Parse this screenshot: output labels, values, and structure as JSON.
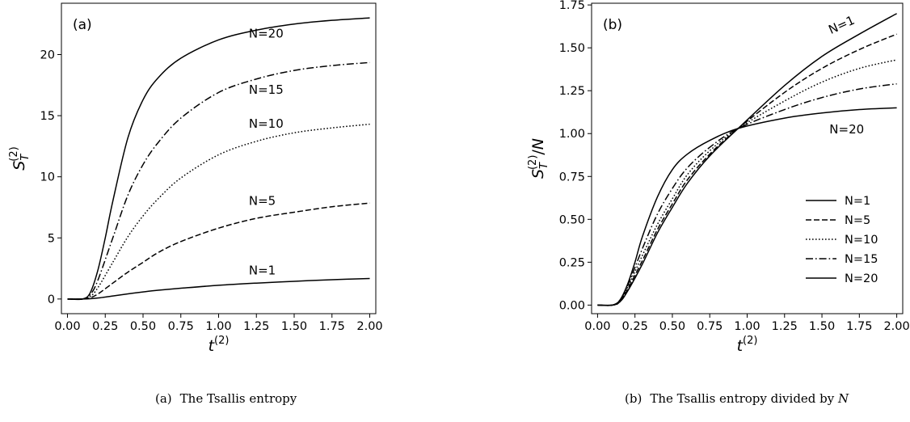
{
  "captions": {
    "a": {
      "tag": "(a)",
      "text": "The Tsallis entropy"
    },
    "b": {
      "tag": "(b)",
      "text_pre": "The Tsallis entropy divided by",
      "text_var": "N"
    }
  },
  "chart_data": [
    {
      "type": "line",
      "panel_label": "(a)",
      "xlabel": "t^(2)",
      "ylabel": "S_T^(2)",
      "xlim": [
        -0.04,
        2.04
      ],
      "ylim": [
        -1.2,
        24.2
      ],
      "xticks": [
        0.0,
        0.25,
        0.5,
        0.75,
        1.0,
        1.25,
        1.5,
        1.75,
        2.0
      ],
      "xtick_labels": [
        "0.00",
        "0.25",
        "0.50",
        "0.75",
        "1.00",
        "1.25",
        "1.50",
        "1.75",
        "2.00"
      ],
      "yticks": [
        0,
        5,
        10,
        15,
        20
      ],
      "ytick_labels": [
        "0",
        "5",
        "10",
        "15",
        "20"
      ],
      "grid": false,
      "legend": "none",
      "series": [
        {
          "name": "N=1",
          "dash": "solid",
          "x": [
            0.0,
            0.1,
            0.15,
            0.2,
            0.3,
            0.4,
            0.5,
            0.6,
            0.75,
            1.0,
            1.25,
            1.5,
            1.75,
            2.0
          ],
          "y": [
            0.0,
            0.0,
            0.02,
            0.08,
            0.25,
            0.42,
            0.58,
            0.72,
            0.88,
            1.12,
            1.3,
            1.45,
            1.58,
            1.68
          ]
        },
        {
          "name": "N=5",
          "dash": "dashed",
          "x": [
            0.0,
            0.1,
            0.15,
            0.2,
            0.3,
            0.4,
            0.5,
            0.6,
            0.75,
            1.0,
            1.25,
            1.5,
            1.75,
            2.0
          ],
          "y": [
            0.0,
            0.0,
            0.1,
            0.4,
            1.3,
            2.2,
            3.0,
            3.8,
            4.7,
            5.8,
            6.6,
            7.1,
            7.55,
            7.85
          ]
        },
        {
          "name": "N=10",
          "dash": "dotted",
          "x": [
            0.0,
            0.1,
            0.15,
            0.2,
            0.3,
            0.4,
            0.5,
            0.6,
            0.75,
            1.0,
            1.25,
            1.5,
            1.75,
            2.0
          ],
          "y": [
            0.0,
            0.0,
            0.2,
            0.9,
            3.0,
            5.1,
            6.8,
            8.2,
            9.9,
            11.8,
            12.9,
            13.6,
            14.0,
            14.3
          ]
        },
        {
          "name": "N=15",
          "dash": "dashdot",
          "x": [
            0.0,
            0.1,
            0.15,
            0.2,
            0.3,
            0.4,
            0.5,
            0.6,
            0.75,
            1.0,
            1.25,
            1.5,
            1.75,
            2.0
          ],
          "y": [
            0.0,
            0.0,
            0.35,
            1.5,
            5.0,
            8.5,
            11.0,
            12.8,
            14.8,
            16.9,
            18.0,
            18.7,
            19.1,
            19.35
          ]
        },
        {
          "name": "N=20",
          "dash": "solid",
          "x": [
            0.0,
            0.1,
            0.15,
            0.2,
            0.25,
            0.3,
            0.4,
            0.5,
            0.6,
            0.75,
            1.0,
            1.25,
            1.5,
            1.75,
            2.0
          ],
          "y": [
            0.0,
            0.0,
            0.5,
            2.3,
            5.0,
            8.0,
            13.2,
            16.3,
            18.1,
            19.7,
            21.2,
            22.0,
            22.5,
            22.8,
            23.0
          ]
        }
      ],
      "annotations": [
        {
          "text": "N=20",
          "x": 1.2,
          "y": 21.4
        },
        {
          "text": "N=15",
          "x": 1.2,
          "y": 16.8
        },
        {
          "text": "N=10",
          "x": 1.2,
          "y": 14.0
        },
        {
          "text": "N=5",
          "x": 1.2,
          "y": 7.7
        },
        {
          "text": "N=1",
          "x": 1.2,
          "y": 2.0
        }
      ]
    },
    {
      "type": "line",
      "panel_label": "(b)",
      "xlabel": "t^(2)",
      "ylabel": "S_T^(2)/N",
      "xlim": [
        -0.04,
        2.04
      ],
      "ylim": [
        -0.05,
        1.76
      ],
      "xticks": [
        0.0,
        0.25,
        0.5,
        0.75,
        1.0,
        1.25,
        1.5,
        1.75,
        2.0
      ],
      "xtick_labels": [
        "0.00",
        "0.25",
        "0.50",
        "0.75",
        "1.00",
        "1.25",
        "1.50",
        "1.75",
        "2.00"
      ],
      "yticks": [
        0.0,
        0.25,
        0.5,
        0.75,
        1.0,
        1.25,
        1.5,
        1.75
      ],
      "ytick_labels": [
        "0.00",
        "0.25",
        "0.50",
        "0.75",
        "1.00",
        "1.25",
        "1.50",
        "1.75"
      ],
      "grid": false,
      "legend": "lower-right",
      "series": [
        {
          "name": "N=1",
          "dash": "solid",
          "x": [
            0.0,
            0.1,
            0.15,
            0.2,
            0.3,
            0.4,
            0.5,
            0.6,
            0.75,
            0.94,
            1.25,
            1.5,
            1.75,
            2.0
          ],
          "y": [
            0.0,
            0.0,
            0.02,
            0.08,
            0.24,
            0.42,
            0.57,
            0.71,
            0.87,
            1.03,
            1.28,
            1.45,
            1.58,
            1.7
          ]
        },
        {
          "name": "N=5",
          "dash": "dashed",
          "x": [
            0.0,
            0.1,
            0.15,
            0.2,
            0.3,
            0.4,
            0.5,
            0.6,
            0.75,
            0.94,
            1.25,
            1.5,
            1.75,
            2.0
          ],
          "y": [
            0.0,
            0.0,
            0.02,
            0.09,
            0.26,
            0.44,
            0.59,
            0.73,
            0.88,
            1.03,
            1.24,
            1.38,
            1.49,
            1.58
          ]
        },
        {
          "name": "N=10",
          "dash": "dotted",
          "x": [
            0.0,
            0.1,
            0.15,
            0.2,
            0.3,
            0.4,
            0.5,
            0.6,
            0.75,
            0.94,
            1.25,
            1.5,
            1.75,
            2.0
          ],
          "y": [
            0.0,
            0.0,
            0.02,
            0.1,
            0.29,
            0.47,
            0.62,
            0.76,
            0.9,
            1.03,
            1.19,
            1.3,
            1.38,
            1.43
          ]
        },
        {
          "name": "N=15",
          "dash": "dashdot",
          "x": [
            0.0,
            0.1,
            0.15,
            0.2,
            0.3,
            0.4,
            0.5,
            0.6,
            0.75,
            0.94,
            1.25,
            1.5,
            1.75,
            2.0
          ],
          "y": [
            0.0,
            0.0,
            0.03,
            0.11,
            0.33,
            0.53,
            0.68,
            0.8,
            0.92,
            1.03,
            1.14,
            1.21,
            1.26,
            1.29
          ]
        },
        {
          "name": "N=20",
          "dash": "solid",
          "x": [
            0.0,
            0.1,
            0.15,
            0.2,
            0.25,
            0.3,
            0.4,
            0.5,
            0.6,
            0.75,
            0.94,
            1.25,
            1.5,
            1.75,
            2.0
          ],
          "y": [
            0.0,
            0.0,
            0.03,
            0.12,
            0.25,
            0.4,
            0.63,
            0.79,
            0.88,
            0.96,
            1.03,
            1.09,
            1.12,
            1.14,
            1.15
          ]
        }
      ],
      "annotations": [
        {
          "text": "N=1",
          "x": 1.56,
          "y": 1.58,
          "rotate": -24
        },
        {
          "text": "N=20",
          "x": 1.55,
          "y": 1.0
        }
      ]
    }
  ]
}
